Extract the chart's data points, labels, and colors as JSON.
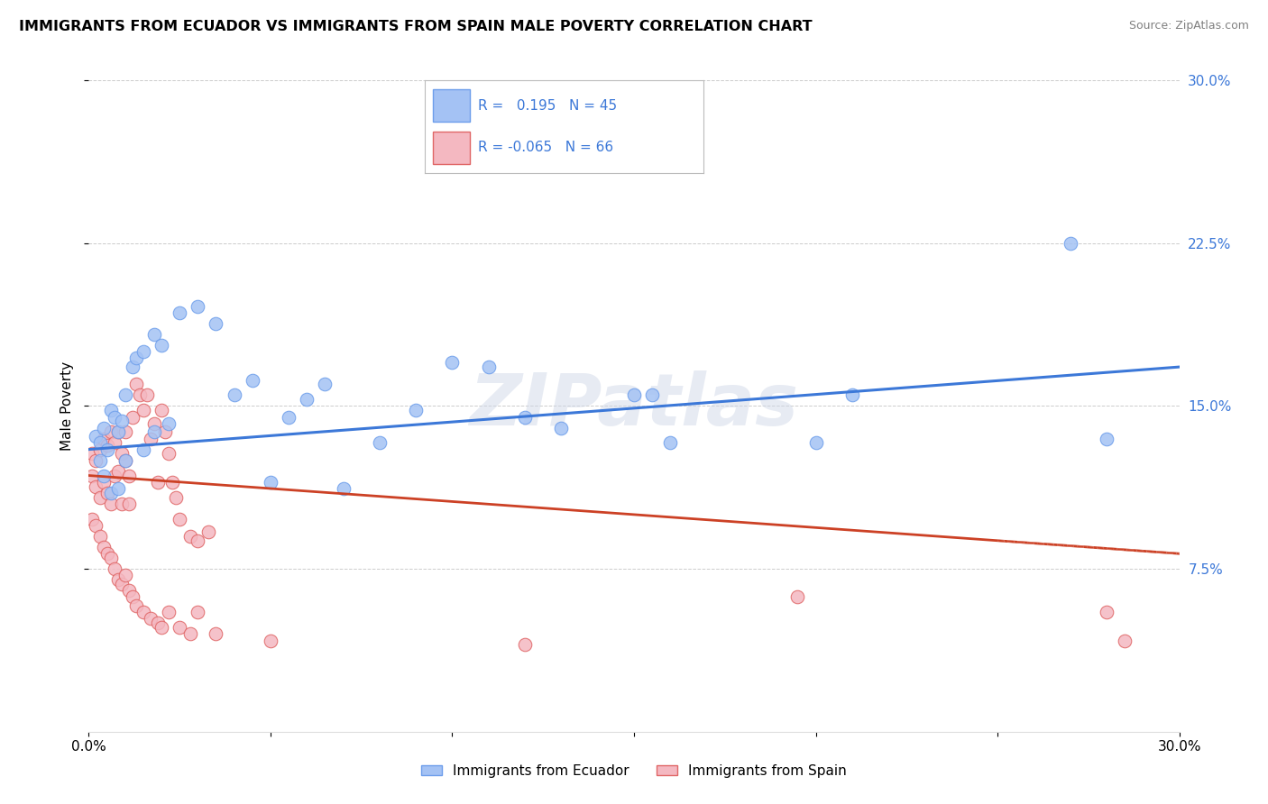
{
  "title": "IMMIGRANTS FROM ECUADOR VS IMMIGRANTS FROM SPAIN MALE POVERTY CORRELATION CHART",
  "source": "Source: ZipAtlas.com",
  "ylabel": "Male Poverty",
  "xlim": [
    0,
    0.3
  ],
  "ylim": [
    0,
    0.3
  ],
  "xticks": [
    0.0,
    0.05,
    0.1,
    0.15,
    0.2,
    0.25,
    0.3
  ],
  "yticks_right": [
    0.075,
    0.15,
    0.225,
    0.3
  ],
  "ytick_right_labels": [
    "7.5%",
    "15.0%",
    "22.5%",
    "30.0%"
  ],
  "ecuador_color": "#a4c2f4",
  "spain_color": "#f4b8c1",
  "ecuador_edge": "#6d9eeb",
  "spain_edge": "#e06666",
  "trend_ecuador_color": "#3c78d8",
  "trend_spain_color": "#cc4125",
  "R_ecuador": 0.195,
  "N_ecuador": 45,
  "R_spain": -0.065,
  "N_spain": 66,
  "ecuador_x": [
    0.002,
    0.003,
    0.004,
    0.005,
    0.006,
    0.007,
    0.008,
    0.009,
    0.01,
    0.012,
    0.013,
    0.015,
    0.018,
    0.02,
    0.025,
    0.03,
    0.035,
    0.04,
    0.045,
    0.055,
    0.06,
    0.065,
    0.08,
    0.09,
    0.1,
    0.11,
    0.12,
    0.13,
    0.15,
    0.155,
    0.16,
    0.2,
    0.21,
    0.27,
    0.28,
    0.003,
    0.004,
    0.006,
    0.008,
    0.01,
    0.015,
    0.018,
    0.022,
    0.05,
    0.07
  ],
  "ecuador_y": [
    0.136,
    0.133,
    0.14,
    0.13,
    0.148,
    0.145,
    0.138,
    0.143,
    0.155,
    0.168,
    0.172,
    0.175,
    0.183,
    0.178,
    0.193,
    0.196,
    0.188,
    0.155,
    0.162,
    0.145,
    0.153,
    0.16,
    0.133,
    0.148,
    0.17,
    0.168,
    0.145,
    0.14,
    0.155,
    0.155,
    0.133,
    0.133,
    0.155,
    0.225,
    0.135,
    0.125,
    0.118,
    0.11,
    0.112,
    0.125,
    0.13,
    0.138,
    0.142,
    0.115,
    0.112
  ],
  "spain_x": [
    0.001,
    0.001,
    0.002,
    0.002,
    0.003,
    0.003,
    0.004,
    0.004,
    0.005,
    0.005,
    0.006,
    0.006,
    0.007,
    0.007,
    0.008,
    0.008,
    0.009,
    0.009,
    0.01,
    0.01,
    0.011,
    0.011,
    0.012,
    0.013,
    0.014,
    0.015,
    0.016,
    0.017,
    0.018,
    0.019,
    0.02,
    0.021,
    0.022,
    0.023,
    0.024,
    0.025,
    0.028,
    0.03,
    0.033,
    0.001,
    0.002,
    0.003,
    0.004,
    0.005,
    0.006,
    0.007,
    0.008,
    0.009,
    0.01,
    0.011,
    0.012,
    0.013,
    0.015,
    0.017,
    0.019,
    0.022,
    0.025,
    0.028,
    0.02,
    0.03,
    0.035,
    0.05,
    0.12,
    0.195,
    0.28,
    0.285
  ],
  "spain_y": [
    0.128,
    0.118,
    0.125,
    0.113,
    0.13,
    0.108,
    0.135,
    0.115,
    0.132,
    0.11,
    0.138,
    0.105,
    0.133,
    0.118,
    0.138,
    0.12,
    0.128,
    0.105,
    0.125,
    0.138,
    0.118,
    0.105,
    0.145,
    0.16,
    0.155,
    0.148,
    0.155,
    0.135,
    0.142,
    0.115,
    0.148,
    0.138,
    0.128,
    0.115,
    0.108,
    0.098,
    0.09,
    0.088,
    0.092,
    0.098,
    0.095,
    0.09,
    0.085,
    0.082,
    0.08,
    0.075,
    0.07,
    0.068,
    0.072,
    0.065,
    0.062,
    0.058,
    0.055,
    0.052,
    0.05,
    0.055,
    0.048,
    0.045,
    0.048,
    0.055,
    0.045,
    0.042,
    0.04,
    0.062,
    0.055,
    0.042
  ],
  "background_color": "#ffffff",
  "grid_color": "#cccccc",
  "watermark": "ZIPatlas",
  "trend_ec_x0": 0.0,
  "trend_ec_x1": 0.3,
  "trend_ec_y0": 0.13,
  "trend_ec_y1": 0.168,
  "trend_sp_x0": 0.0,
  "trend_sp_x1": 0.3,
  "trend_sp_y0": 0.118,
  "trend_sp_y1": 0.082
}
